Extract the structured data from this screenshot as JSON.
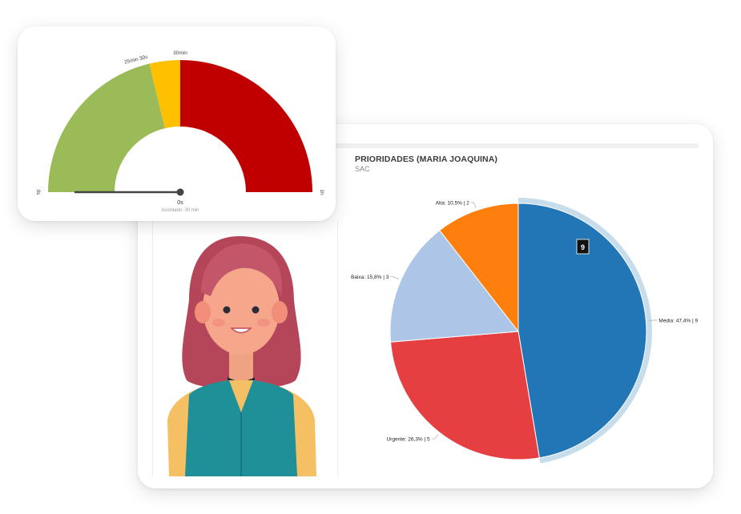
{
  "pie_card": {
    "title": "PRIORIDADES (MARIA JOAQUINA)",
    "subtitle": "SAC",
    "tooltip_value": "9"
  },
  "gauge_card": {
    "needle_value_label": "0s",
    "footer_label": "Acordado: 30 min",
    "axis_min_label": "0s",
    "axis_max_label": "1h",
    "threshold_labels": [
      "25min 30s",
      "30min"
    ]
  },
  "colors": {
    "medio": "#2276b5",
    "urgente": "#e53f42",
    "baixa": "#adc6e8",
    "alta": "#fe7f0e",
    "gauge_green": "#9bbb59",
    "gauge_yellow": "#ffc000",
    "gauge_red": "#c00000"
  },
  "chart_data": [
    {
      "type": "pie",
      "title": "PRIORIDADES (MARIA JOAQUINA)",
      "subtitle": "SAC",
      "slices": [
        {
          "name": "Média",
          "percent": 47.4,
          "value": 9,
          "label": "Média: 47,4% | 9",
          "color": "#2276b5"
        },
        {
          "name": "Urgente",
          "percent": 26.3,
          "value": 5,
          "label": "Urgente: 26,3% | 5",
          "color": "#e53f42"
        },
        {
          "name": "Baixa",
          "percent": 15.8,
          "value": 3,
          "label": "Baixa: 15,8% | 3",
          "color": "#adc6e8"
        },
        {
          "name": "Alta",
          "percent": 10.5,
          "value": 2,
          "label": "Alta: 10,5% | 2",
          "color": "#fe7f0e"
        }
      ]
    },
    {
      "type": "gauge",
      "min_seconds": 0,
      "max_seconds": 3600,
      "value_seconds": 0,
      "bands": [
        {
          "from_seconds": 0,
          "to_seconds": 1530,
          "color": "#9bbb59"
        },
        {
          "from_seconds": 1530,
          "to_seconds": 1800,
          "color": "#ffc000"
        },
        {
          "from_seconds": 1800,
          "to_seconds": 3600,
          "color": "#c00000"
        }
      ],
      "tick_labels": [
        "0s",
        "25min 30s",
        "30min",
        "1h"
      ]
    }
  ]
}
